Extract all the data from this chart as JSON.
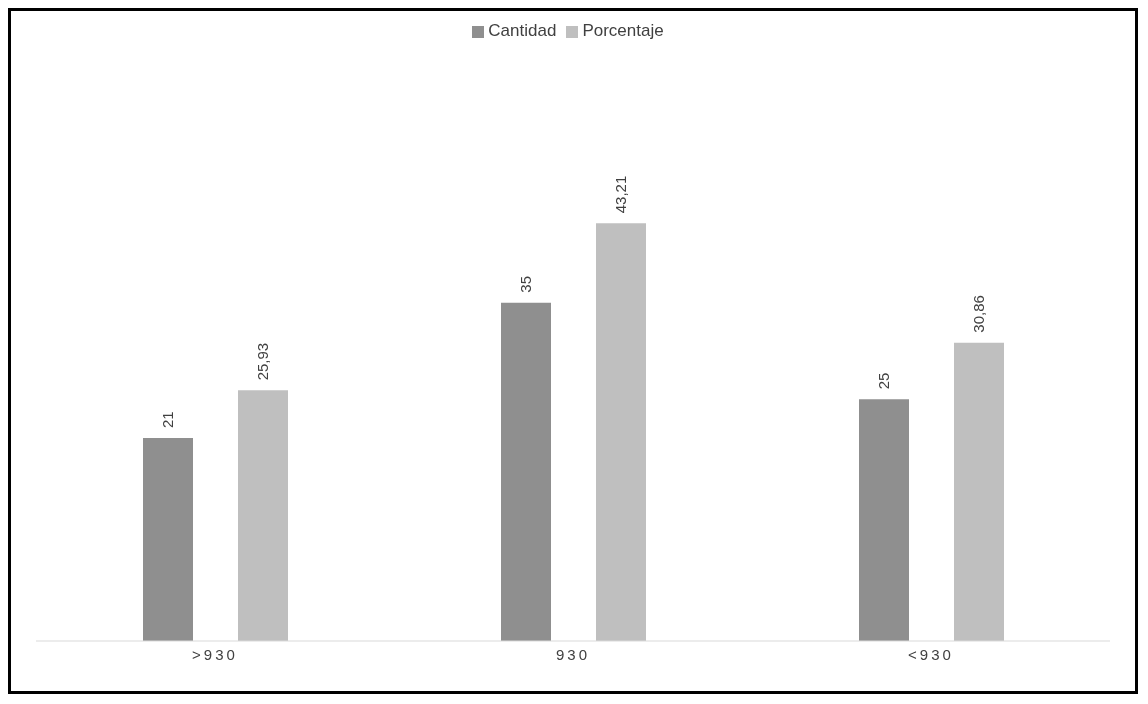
{
  "chart_data": {
    "type": "bar",
    "categories": [
      ">930",
      "930",
      "<930"
    ],
    "series": [
      {
        "name": "Cantidad",
        "color": "#8f8f8f",
        "values": [
          21,
          35,
          25
        ],
        "value_labels": [
          "21",
          "35",
          "25"
        ]
      },
      {
        "name": "Porcentaje",
        "color": "#bfbfbf",
        "values": [
          25.93,
          43.21,
          30.86
        ],
        "value_labels": [
          "25,93",
          "43,21",
          "30,86"
        ]
      }
    ],
    "legend": "top",
    "grid": false
  }
}
